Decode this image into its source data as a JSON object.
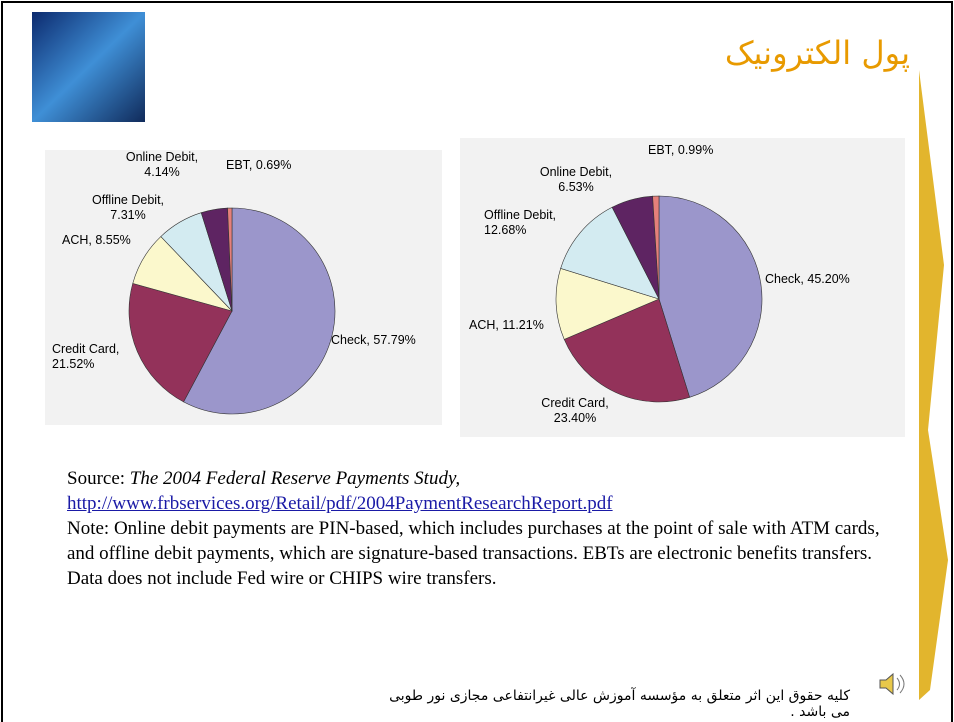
{
  "slide": {
    "title": "پول الکترونیک",
    "source_label": "Source:",
    "source_title": "The 2004 Federal Reserve Payments Study,",
    "source_url": "http://www.frbservices.org/Retail/pdf/2004PaymentResearchReport.pdf",
    "note": "Note: Online debit payments are PIN-based, which includes purchases at the point of sale with ATM cards, and offline debit payments, which are signature-based transactions. EBTs are electronic benefits transfers. Data does not include Fed wire or CHIPS wire transfers.",
    "footer": "کلیه حقوق این اثر متعلق به مؤسسه آموزش عالی غیرانتفاعی مجازی نور طوبی می باشد ."
  },
  "chart_data": [
    {
      "type": "pie",
      "values": [
        57.79,
        21.52,
        8.55,
        7.31,
        4.14,
        0.69
      ],
      "value_labels": [
        "Check, 57.79%",
        "Credit Card, 21.52%",
        "ACH, 8.55%",
        "Offline Debit, 7.31%",
        "Online Debit, 4.14%",
        "EBT, 0.69%"
      ],
      "colors": [
        "#9b96cb",
        "#93325a",
        "#fbf8cc",
        "#d3ebf1",
        "#5e2462",
        "#e5807b"
      ]
    },
    {
      "type": "pie",
      "values": [
        45.2,
        23.4,
        11.21,
        12.68,
        6.53,
        0.99
      ],
      "value_labels": [
        "Check, 45.20%",
        "Credit Card, 23.40%",
        "ACH, 11.21%",
        "Offline Debit, 12.68%",
        "Online Debit, 6.53%",
        "EBT, 0.99%"
      ],
      "colors": [
        "#9b96cb",
        "#93325a",
        "#fbf8cc",
        "#d3ebf1",
        "#5e2462",
        "#e5807b"
      ]
    }
  ]
}
